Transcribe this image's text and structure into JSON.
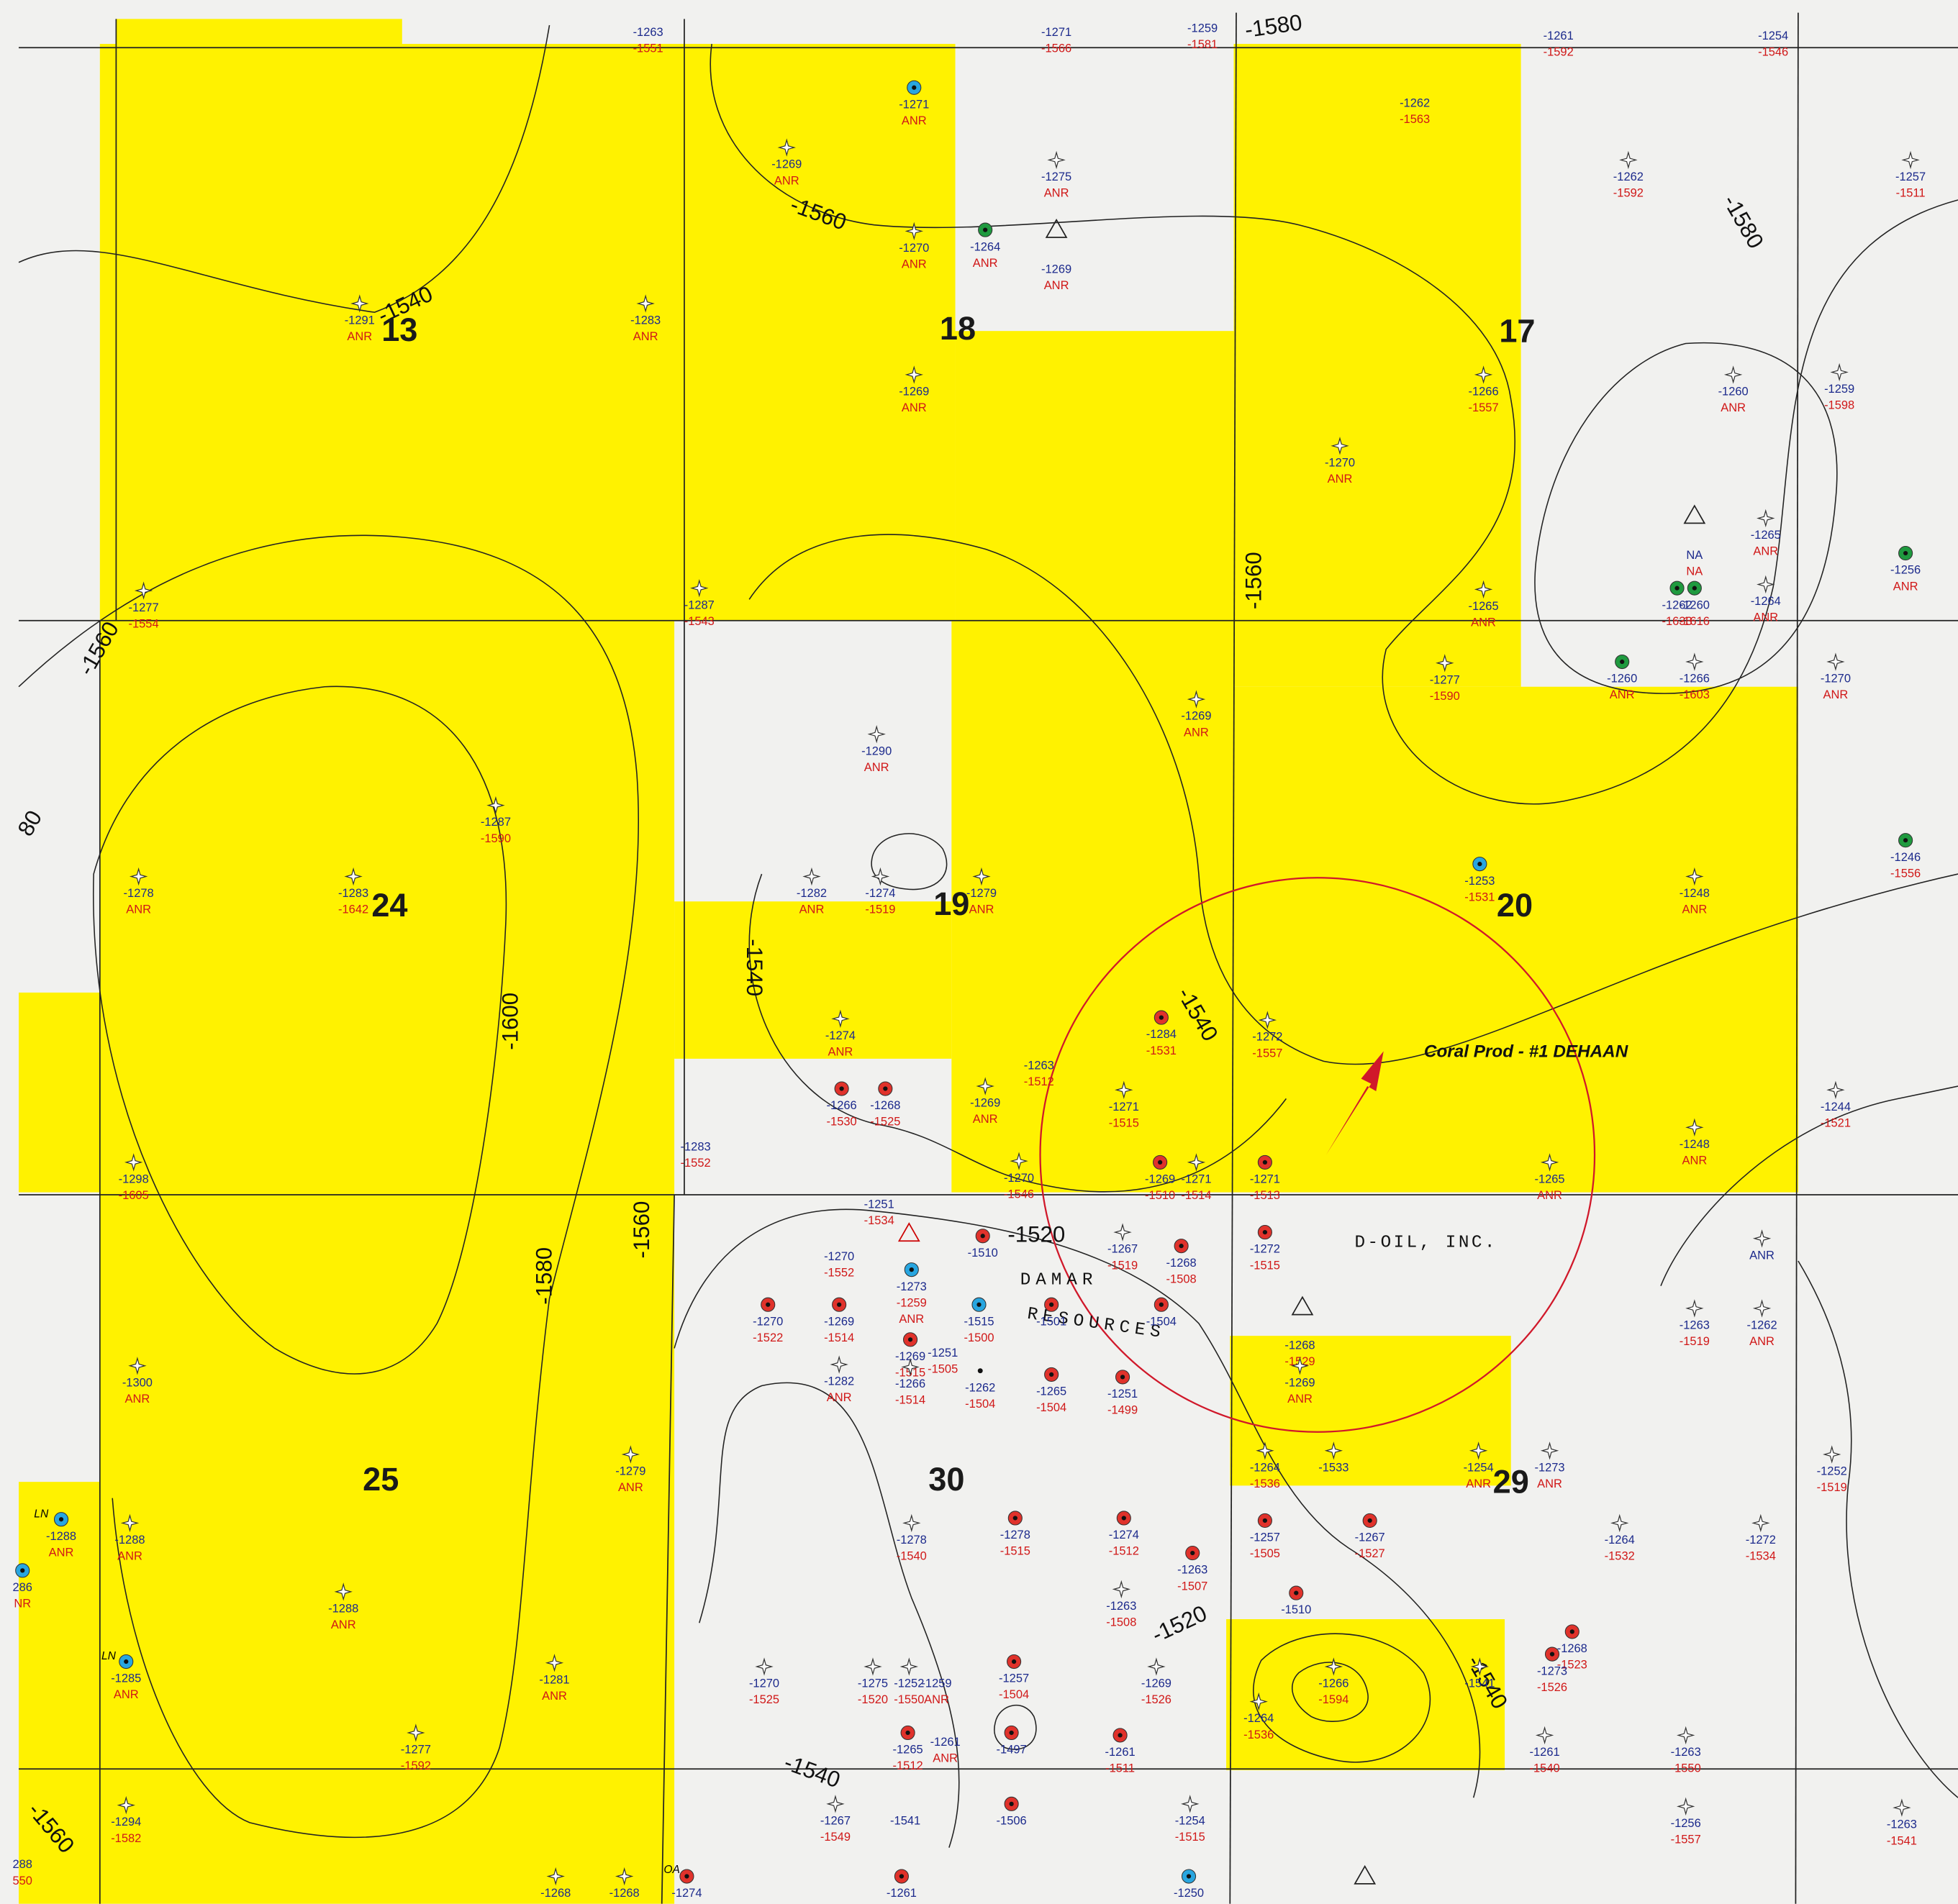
{
  "sections": [
    "13",
    "18",
    "17",
    "24",
    "19",
    "20",
    "25",
    "30",
    "29"
  ],
  "contour_labels": [
    "-1580",
    "-1560",
    "-1540",
    "-1580",
    "-1560",
    "80",
    "-1560",
    "-1540",
    "-1600",
    "-1540",
    "-1520",
    "-1580",
    "-1560",
    "-1520",
    "-1540",
    "-1540",
    "-1560"
  ],
  "annotations": {
    "operator": "Coral Prod - #1 DEHAAN",
    "company": "D-OIL, INC.",
    "company2_line1": "DAMAR",
    "company2_line2": "RESOURCES"
  },
  "other_labels": [
    "LN",
    "LN",
    "OA"
  ],
  "wells": [
    {
      "symbol": "none",
      "labels": [
        "-1263",
        "-1551"
      ]
    },
    {
      "symbol": "none",
      "labels": [
        "-1271",
        "-1566"
      ]
    },
    {
      "symbol": "none",
      "labels": [
        "-1259",
        "-1581"
      ]
    },
    {
      "symbol": "none",
      "labels": [
        "-1261",
        "-1592"
      ]
    },
    {
      "symbol": "none",
      "labels": [
        "-1254",
        "-1546"
      ]
    },
    {
      "symbol": "blue",
      "labels": [
        "-1271",
        "ANR"
      ]
    },
    {
      "symbol": "none",
      "labels": [
        "-1262",
        "-1563"
      ]
    },
    {
      "symbol": "star",
      "labels": [
        "-1269",
        "ANR"
      ]
    },
    {
      "symbol": "star",
      "labels": [
        "-1275",
        "ANR"
      ]
    },
    {
      "symbol": "star",
      "labels": [
        "-1262",
        "-1592"
      ]
    },
    {
      "symbol": "star",
      "labels": [
        "-1257",
        "-1511"
      ]
    },
    {
      "symbol": "star",
      "labels": [
        "-1270",
        "ANR"
      ]
    },
    {
      "symbol": "green",
      "labels": [
        "-1264",
        "ANR"
      ]
    },
    {
      "symbol": "none",
      "labels": [
        "-1269",
        "ANR"
      ]
    },
    {
      "symbol": "star",
      "labels": [
        "-1291",
        "ANR"
      ]
    },
    {
      "symbol": "star",
      "labels": [
        "-1283",
        "ANR"
      ]
    },
    {
      "symbol": "star",
      "labels": [
        "-1269",
        "ANR"
      ]
    },
    {
      "symbol": "star",
      "labels": [
        "-1266",
        "-1557"
      ]
    },
    {
      "symbol": "star",
      "labels": [
        "-1260",
        "ANR"
      ]
    },
    {
      "symbol": "star",
      "labels": [
        "-1259",
        "-1598"
      ]
    },
    {
      "symbol": "star",
      "labels": [
        "-1270",
        "ANR"
      ]
    },
    {
      "symbol": "star",
      "labels": [
        "-1265",
        "ANR"
      ]
    },
    {
      "symbol": "none",
      "labels": [
        "NA",
        "NA"
      ]
    },
    {
      "symbol": "green",
      "labels": [
        "-1256",
        "ANR"
      ]
    },
    {
      "symbol": "star",
      "labels": [
        "-1264",
        "ANR"
      ]
    },
    {
      "symbol": "green",
      "labels": [
        "-1262",
        "-1633"
      ]
    },
    {
      "symbol": "green",
      "labels": [
        "-1260",
        "-1616"
      ]
    },
    {
      "symbol": "star",
      "labels": [
        "-1265",
        "ANR"
      ]
    },
    {
      "symbol": "star",
      "labels": [
        "-1277",
        "-1554"
      ]
    },
    {
      "symbol": "star",
      "labels": [
        "-1287",
        "-1543"
      ]
    },
    {
      "symbol": "green",
      "labels": [
        "-1260",
        "ANR"
      ]
    },
    {
      "symbol": "star",
      "labels": [
        "-1266",
        "-1603"
      ]
    },
    {
      "symbol": "star",
      "labels": [
        "-1270",
        "ANR"
      ]
    },
    {
      "symbol": "star",
      "labels": [
        "-1277",
        "-1590"
      ]
    },
    {
      "symbol": "star",
      "labels": [
        "-1269",
        "ANR"
      ]
    },
    {
      "symbol": "star",
      "labels": [
        "-1290",
        "ANR"
      ]
    },
    {
      "symbol": "star",
      "labels": [
        "-1287",
        "-1590"
      ]
    },
    {
      "symbol": "star",
      "labels": [
        "-1278",
        "ANR"
      ]
    },
    {
      "symbol": "star",
      "labels": [
        "-1283",
        "-1642"
      ]
    },
    {
      "symbol": "star",
      "labels": [
        "-1282",
        "ANR"
      ]
    },
    {
      "symbol": "star",
      "labels": [
        "-1274",
        "-1519"
      ]
    },
    {
      "symbol": "star",
      "labels": [
        "-1279",
        "ANR"
      ]
    },
    {
      "symbol": "blue",
      "labels": [
        "-1253",
        "-1531"
      ]
    },
    {
      "symbol": "star",
      "labels": [
        "-1248",
        "ANR"
      ]
    },
    {
      "symbol": "green",
      "labels": [
        "-1246",
        "-1556"
      ]
    },
    {
      "symbol": "star",
      "labels": [
        "-1274",
        "ANR"
      ]
    },
    {
      "symbol": "red",
      "labels": [
        "-1284",
        "-1531"
      ]
    },
    {
      "symbol": "star",
      "labels": [
        "-1272",
        "-1557"
      ]
    },
    {
      "symbol": "none",
      "labels": [
        "-1263",
        "-1512"
      ]
    },
    {
      "symbol": "red",
      "labels": [
        "-1266",
        "-1530"
      ]
    },
    {
      "symbol": "red",
      "labels": [
        "-1268",
        "-1525"
      ]
    },
    {
      "symbol": "star",
      "labels": [
        "-1269",
        "ANR"
      ]
    },
    {
      "symbol": "star",
      "labels": [
        "-1271",
        "-1515"
      ]
    },
    {
      "symbol": "star",
      "labels": [
        "-1244",
        "-1521"
      ]
    },
    {
      "symbol": "star",
      "labels": [
        "-1248",
        "ANR"
      ]
    },
    {
      "symbol": "none",
      "labels": [
        "-1283",
        "-1552"
      ]
    },
    {
      "symbol": "star",
      "labels": [
        "-1298",
        "-1605"
      ]
    },
    {
      "symbol": "star",
      "labels": [
        "-1270",
        "-1546"
      ]
    },
    {
      "symbol": "red",
      "labels": [
        "-1269",
        "-1510"
      ]
    },
    {
      "symbol": "star",
      "labels": [
        "-1271",
        "-1514"
      ]
    },
    {
      "symbol": "red",
      "labels": [
        "-1271",
        "-1513"
      ]
    },
    {
      "symbol": "star",
      "labels": [
        "-1265",
        "ANR"
      ]
    },
    {
      "symbol": "none",
      "labels": [
        "-1251",
        "-1534"
      ]
    },
    {
      "symbol": "none",
      "labels": [
        "-1270",
        "-1552"
      ]
    },
    {
      "symbol": "red",
      "labels": [
        "-1510"
      ]
    },
    {
      "symbol": "star",
      "labels": [
        "-1267",
        "-1519"
      ]
    },
    {
      "symbol": "red",
      "labels": [
        "-1268",
        "-1508"
      ]
    },
    {
      "symbol": "red",
      "labels": [
        "-1272",
        "-1515"
      ]
    },
    {
      "symbol": "blue",
      "labels": [
        "-1273",
        "-1259",
        "ANR"
      ]
    },
    {
      "symbol": "red",
      "labels": [
        "-1270",
        "-1522"
      ]
    },
    {
      "symbol": "red",
      "labels": [
        "-1269",
        "-1514"
      ]
    },
    {
      "symbol": "blue",
      "labels": [
        "-1515",
        "-1500"
      ]
    },
    {
      "symbol": "red",
      "labels": [
        "-1501"
      ]
    },
    {
      "symbol": "red",
      "labels": [
        "-1504"
      ]
    },
    {
      "symbol": "red",
      "labels": [
        "-1269",
        "-1515"
      ]
    },
    {
      "symbol": "none",
      "labels": [
        "-1251",
        "-1505"
      ]
    },
    {
      "symbol": "none",
      "labels": [
        "-1268",
        "-1529"
      ]
    },
    {
      "symbol": "dot",
      "labels": [
        "-1262",
        "-1504"
      ]
    },
    {
      "symbol": "red",
      "labels": [
        "-1265",
        "-1504"
      ]
    },
    {
      "symbol": "red",
      "labels": [
        "-1251",
        "-1499"
      ]
    },
    {
      "symbol": "star",
      "labels": [
        "-1282",
        "ANR"
      ]
    },
    {
      "symbol": "star",
      "labels": [
        "-1266",
        "-1514"
      ]
    },
    {
      "symbol": "star",
      "labels": [
        "-1269",
        "ANR"
      ]
    },
    {
      "symbol": "star",
      "labels": [
        "-1300",
        "ANR"
      ]
    },
    {
      "symbol": "star",
      "labels": [
        "-1263",
        "-1519"
      ]
    },
    {
      "symbol": "star",
      "labels": [
        "-1262",
        "ANR"
      ]
    },
    {
      "symbol": "star",
      "labels": [
        "ANR"
      ]
    },
    {
      "symbol": "star",
      "labels": [
        "-1279",
        "ANR"
      ]
    },
    {
      "symbol": "star",
      "labels": [
        "-1264",
        "-1536"
      ]
    },
    {
      "symbol": "star",
      "labels": [
        "-1533"
      ]
    },
    {
      "symbol": "star",
      "labels": [
        "-1254",
        "ANR"
      ]
    },
    {
      "symbol": "star",
      "labels": [
        "-1273",
        "ANR"
      ]
    },
    {
      "symbol": "star",
      "labels": [
        "-1252",
        "-1519"
      ]
    },
    {
      "symbol": "blue",
      "labels": [
        "-1288",
        "ANR"
      ]
    },
    {
      "symbol": "star",
      "labels": [
        "-1288",
        "ANR"
      ]
    },
    {
      "symbol": "star",
      "labels": [
        "-1278",
        "-1540"
      ]
    },
    {
      "symbol": "red",
      "labels": [
        "-1278",
        "-1515"
      ]
    },
    {
      "symbol": "red",
      "labels": [
        "-1274",
        "-1512"
      ]
    },
    {
      "symbol": "red",
      "labels": [
        "-1257",
        "-1505"
      ]
    },
    {
      "symbol": "red",
      "labels": [
        "-1267",
        "-1527"
      ]
    },
    {
      "symbol": "star",
      "labels": [
        "-1264",
        "-1532"
      ]
    },
    {
      "symbol": "star",
      "labels": [
        "-1272",
        "-1534"
      ]
    },
    {
      "symbol": "red",
      "labels": [
        "-1263",
        "-1507"
      ]
    },
    {
      "symbol": "blue",
      "labels": [
        "286",
        "NR"
      ]
    },
    {
      "symbol": "star",
      "labels": [
        "-1288",
        "ANR"
      ]
    },
    {
      "symbol": "star",
      "labels": [
        "-1263",
        "-1508"
      ]
    },
    {
      "symbol": "red",
      "labels": [
        "-1510"
      ]
    },
    {
      "symbol": "blue",
      "labels": [
        "-1285",
        "ANR"
      ]
    },
    {
      "symbol": "star",
      "labels": [
        "-1281",
        "ANR"
      ]
    },
    {
      "symbol": "star",
      "labels": [
        "-1270",
        "-1525"
      ]
    },
    {
      "symbol": "star",
      "labels": [
        "-1275",
        "-1520"
      ]
    },
    {
      "symbol": "star",
      "labels": [
        "-1252",
        "-1550"
      ]
    },
    {
      "symbol": "none",
      "labels": [
        "-1259",
        "ANR"
      ]
    },
    {
      "symbol": "red",
      "labels": [
        "-1257",
        "-1504"
      ]
    },
    {
      "symbol": "star",
      "labels": [
        "-1269",
        "-1526"
      ]
    },
    {
      "symbol": "star",
      "labels": [
        "-1266",
        "-1594"
      ]
    },
    {
      "symbol": "star",
      "labels": [
        "-1541"
      ]
    },
    {
      "symbol": "red",
      "labels": [
        "-1268",
        "-1523"
      ]
    },
    {
      "symbol": "red",
      "labels": [
        "-1273",
        "-1526"
      ]
    },
    {
      "symbol": "star",
      "labels": [
        "-1277",
        "-1592"
      ]
    },
    {
      "symbol": "red",
      "labels": [
        "-1265",
        "-1512"
      ]
    },
    {
      "symbol": "none",
      "labels": [
        "-1261",
        "ANR"
      ]
    },
    {
      "symbol": "red",
      "labels": [
        "-1497"
      ]
    },
    {
      "symbol": "red",
      "labels": [
        "-1261",
        "-1511"
      ]
    },
    {
      "symbol": "star",
      "labels": [
        "-1264",
        "-1536"
      ]
    },
    {
      "symbol": "star",
      "labels": [
        "-1261",
        "-1540"
      ]
    },
    {
      "symbol": "star",
      "labels": [
        "-1263",
        "-1550"
      ]
    },
    {
      "symbol": "star",
      "labels": [
        "-1294",
        "-1582"
      ]
    },
    {
      "symbol": "star",
      "labels": [
        "-1267",
        "-1549"
      ]
    },
    {
      "symbol": "none",
      "labels": [
        "-1541"
      ]
    },
    {
      "symbol": "red",
      "labels": [
        "-1506"
      ]
    },
    {
      "symbol": "star",
      "labels": [
        "-1254",
        "-1515"
      ]
    },
    {
      "symbol": "star",
      "labels": [
        "-1256",
        "-1557"
      ]
    },
    {
      "symbol": "star",
      "labels": [
        "-1263",
        "-1541"
      ]
    },
    {
      "symbol": "none",
      "labels": [
        "288",
        "550"
      ]
    },
    {
      "symbol": "red",
      "labels": [
        "-1274"
      ]
    },
    {
      "symbol": "star",
      "labels": [
        "-1268"
      ]
    },
    {
      "symbol": "star",
      "labels": [
        "-1268"
      ]
    },
    {
      "symbol": "red",
      "labels": [
        "-1261"
      ]
    },
    {
      "symbol": "blue",
      "labels": [
        "-1250"
      ]
    }
  ]
}
